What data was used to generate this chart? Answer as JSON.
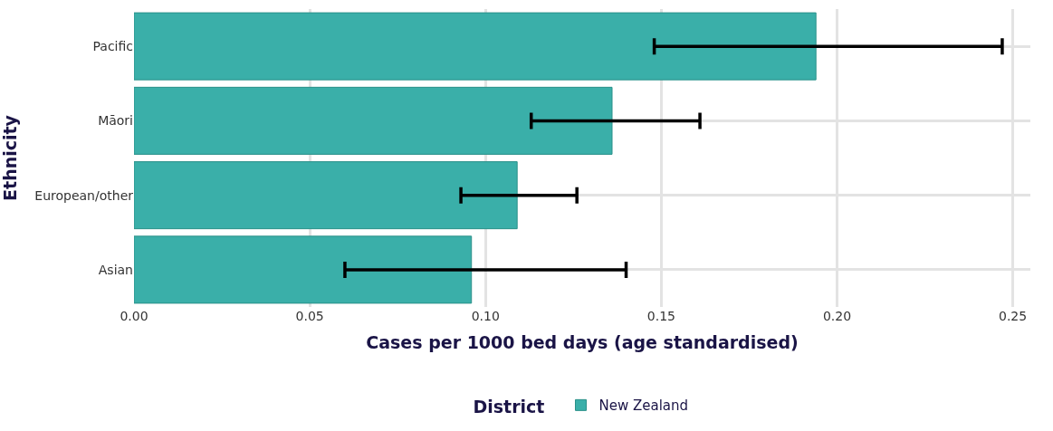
{
  "chart_data": {
    "type": "bar",
    "orientation": "horizontal",
    "xlabel": "Cases per 1000 bed days (age standardised)",
    "ylabel": "Ethnicity",
    "legend_title": "District",
    "categories": [
      "Pacific",
      "Māori",
      "European/other",
      "Asian"
    ],
    "series": [
      {
        "name": "New Zealand",
        "color": "#3aafa9",
        "values": [
          0.194,
          0.136,
          0.109,
          0.096
        ],
        "errors": [
          [
            0.148,
            0.247
          ],
          [
            0.113,
            0.161
          ],
          [
            0.093,
            0.126
          ],
          [
            0.06,
            0.14
          ]
        ]
      }
    ],
    "xlim": [
      0,
      0.255
    ],
    "xticks": [
      {
        "value": 0,
        "label": "0.00"
      },
      {
        "value": 0.05,
        "label": "0.05"
      },
      {
        "value": 0.1,
        "label": "0.10"
      },
      {
        "value": 0.15,
        "label": "0.15"
      },
      {
        "value": 0.2,
        "label": "0.20"
      },
      {
        "value": 0.25,
        "label": "0.25"
      }
    ],
    "grid": true,
    "legend": "bottom"
  }
}
